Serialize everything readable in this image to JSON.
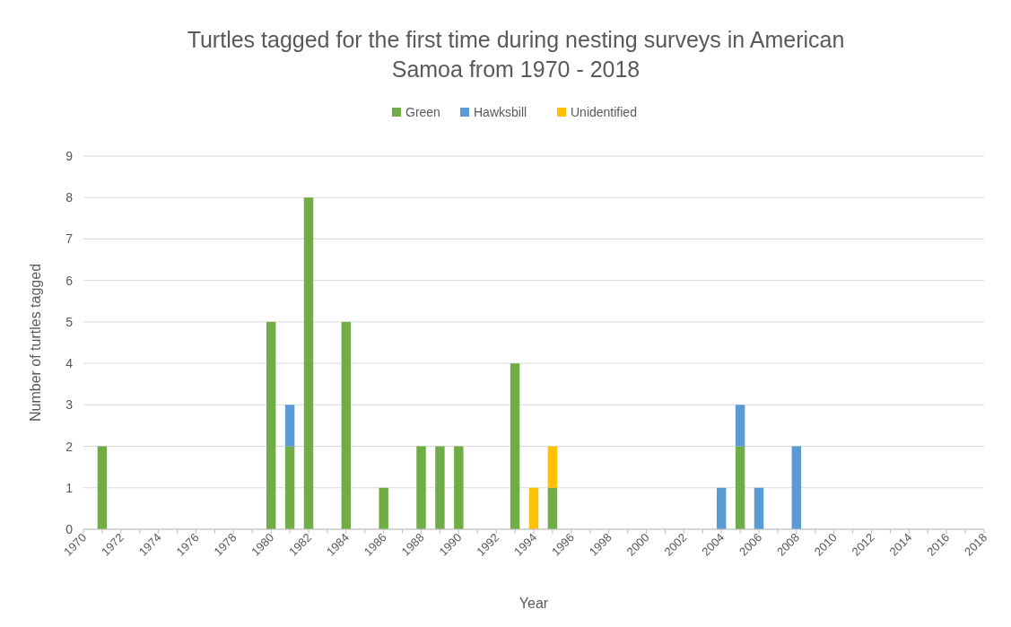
{
  "chart_data": {
    "type": "bar",
    "title": "Turtles tagged for the first time during nesting surveys in American Samoa from 1970 - 2018",
    "xlabel": "Year",
    "ylabel": "Number of turtles tagged",
    "categories": [
      "1970",
      null,
      "1972",
      null,
      "1974",
      null,
      "1976",
      null,
      "1978",
      null,
      "1980",
      null,
      "1982",
      null,
      "1984",
      null,
      "1986",
      null,
      "1988",
      null,
      "1990",
      null,
      "1992",
      null,
      "1994",
      null,
      "1996",
      null,
      "1998",
      null,
      "2000",
      null,
      "2002",
      null,
      "2004",
      null,
      "2006",
      null,
      "2008",
      null,
      "2010",
      null,
      "2012",
      null,
      "2014",
      null,
      "2016",
      null,
      "2018"
    ],
    "series": [
      {
        "name": "Green",
        "color": "#70ad47",
        "values": [
          0,
          2,
          0,
          0,
          0,
          0,
          0,
          0,
          0,
          0,
          5,
          2,
          8,
          0,
          5,
          0,
          1,
          0,
          2,
          2,
          2,
          0,
          0,
          4,
          0,
          1,
          0,
          0,
          0,
          0,
          0,
          0,
          0,
          0,
          0,
          2,
          0,
          0,
          0,
          0,
          0,
          0,
          0,
          0,
          0,
          0,
          0,
          0,
          0
        ]
      },
      {
        "name": "Hawksbill",
        "color": "#5b9bd5",
        "values": [
          0,
          0,
          0,
          0,
          0,
          0,
          0,
          0,
          0,
          0,
          0,
          1,
          0,
          0,
          0,
          0,
          0,
          0,
          0,
          0,
          0,
          0,
          0,
          0,
          0,
          0,
          0,
          0,
          0,
          0,
          0,
          0,
          0,
          0,
          1,
          1,
          1,
          0,
          2,
          0,
          0,
          0,
          0,
          0,
          0,
          0,
          0,
          0,
          0
        ]
      },
      {
        "name": "Unidentified",
        "color": "#ffc000",
        "values": [
          0,
          0,
          0,
          0,
          0,
          0,
          0,
          0,
          0,
          0,
          0,
          0,
          0,
          0,
          0,
          0,
          0,
          0,
          0,
          0,
          0,
          0,
          0,
          0,
          1,
          1,
          0,
          0,
          0,
          0,
          0,
          0,
          0,
          0,
          0,
          0,
          0,
          0,
          0,
          0,
          0,
          0,
          0,
          0,
          0,
          0,
          0,
          0,
          0
        ]
      }
    ],
    "stacked": true,
    "ylim": [
      0,
      9
    ],
    "yticks": [
      0,
      1,
      2,
      3,
      4,
      5,
      6,
      7,
      8,
      9
    ],
    "grid": "y",
    "legend": "top"
  }
}
